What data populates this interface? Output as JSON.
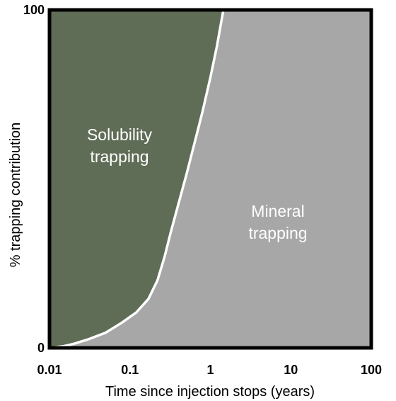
{
  "chart_data": {
    "type": "area",
    "xscale": "log",
    "xlim": [
      0.01,
      100
    ],
    "ylim": [
      0,
      100
    ],
    "xlabel": "Time since injection stops (years)",
    "ylabel": "% trapping contribution",
    "xticks": [
      "0.01",
      "0.1",
      "1",
      "10",
      "100"
    ],
    "yticks": [
      "0",
      "100"
    ],
    "grid": false,
    "boundary": {
      "x": [
        0.01,
        0.015,
        0.02,
        0.03,
        0.05,
        0.08,
        0.12,
        0.17,
        0.22,
        0.27,
        0.32,
        0.4,
        0.5,
        0.65,
        0.8,
        1.0,
        1.2,
        1.45
      ],
      "y": [
        0,
        0.5,
        1.2,
        2.5,
        4.5,
        7.5,
        10.5,
        14.5,
        20,
        27,
        34,
        42.5,
        51,
        61.5,
        70,
        80,
        89,
        100
      ]
    },
    "regions": [
      {
        "label_line1": "Solubility",
        "label_line2": "trapping",
        "color": "#5f6d56"
      },
      {
        "label_line1": "Mineral",
        "label_line2": "trapping",
        "color": "#a7a7a7"
      }
    ],
    "boundary_color": "#ffffff",
    "frame_color": "#000000"
  }
}
